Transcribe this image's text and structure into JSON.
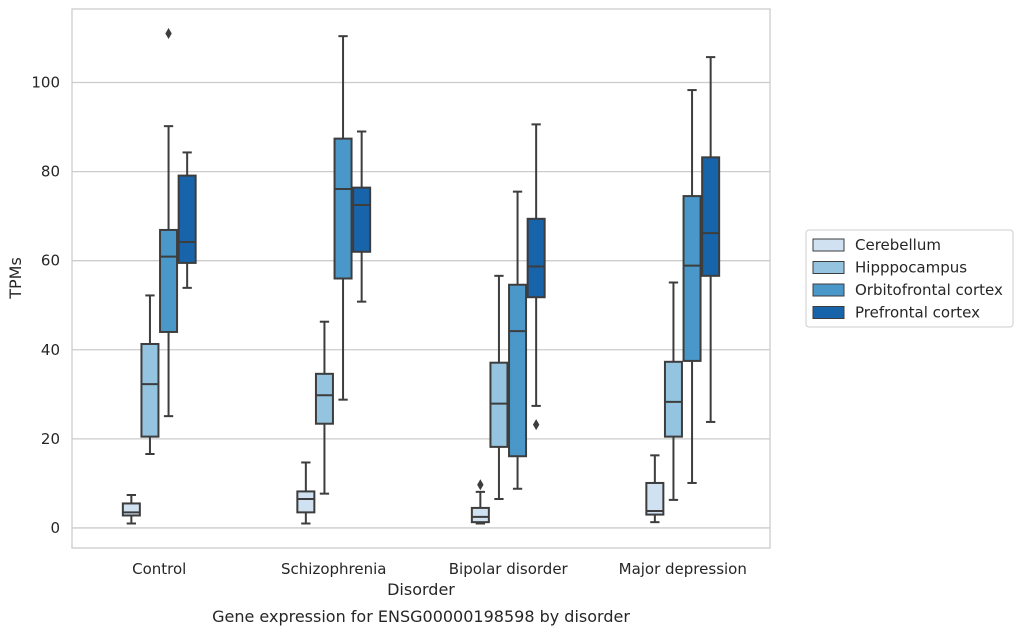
{
  "chart_data": {
    "type": "box",
    "xlabel": "Disorder",
    "ylabel": "TPMs",
    "caption": "Gene expression for ENSG00000198598 by disorder",
    "categories": [
      "Control",
      "Schizophrenia",
      "Bipolar disorder",
      "Major depression"
    ],
    "ylim": [
      -4.5,
      116.5
    ],
    "yticks": [
      0,
      20,
      40,
      60,
      80,
      100
    ],
    "grid": "horizontal",
    "legend_position": "right",
    "series": [
      {
        "name": "Cerebellum",
        "color": "#d0e1f2",
        "boxes": [
          {
            "min": 1,
            "q1": 2.8,
            "median": 3.5,
            "q3": 5.5,
            "max": 7.4,
            "outliers": []
          },
          {
            "min": 1,
            "q1": 3.5,
            "median": 6.5,
            "q3": 8.2,
            "max": 14.7,
            "outliers": []
          },
          {
            "min": 1,
            "q1": 1.3,
            "median": 2.5,
            "q3": 4.5,
            "max": 8.1,
            "outliers": [
              9.7
            ]
          },
          {
            "min": 1.3,
            "q1": 3,
            "median": 3.8,
            "q3": 10.1,
            "max": 16.3,
            "outliers": []
          }
        ]
      },
      {
        "name": "Hipppocampus",
        "color": "#94c4df",
        "boxes": [
          {
            "min": 16.6,
            "q1": 20.5,
            "median": 32.3,
            "q3": 41.3,
            "max": 52.2,
            "outliers": []
          },
          {
            "min": 7.7,
            "q1": 23.4,
            "median": 29.8,
            "q3": 34.6,
            "max": 46.3,
            "outliers": []
          },
          {
            "min": 6.5,
            "q1": 18.2,
            "median": 27.9,
            "q3": 37.1,
            "max": 56.6,
            "outliers": []
          },
          {
            "min": 6.3,
            "q1": 20.5,
            "median": 28.3,
            "q3": 37.3,
            "max": 55.1,
            "outliers": []
          }
        ]
      },
      {
        "name": "Orbitofrontal cortex",
        "color": "#4a98c9",
        "boxes": [
          {
            "min": 25.1,
            "q1": 44,
            "median": 60.9,
            "q3": 66.9,
            "max": 90.2,
            "outliers": [
              111
            ]
          },
          {
            "min": 28.8,
            "q1": 56,
            "median": 76.1,
            "q3": 87.4,
            "max": 110.4,
            "outliers": []
          },
          {
            "min": 8.8,
            "q1": 16.1,
            "median": 44.2,
            "q3": 54.6,
            "max": 75.5,
            "outliers": []
          },
          {
            "min": 10.1,
            "q1": 37.5,
            "median": 58.9,
            "q3": 74.5,
            "max": 98.3,
            "outliers": []
          }
        ]
      },
      {
        "name": "Prefrontal cortex",
        "color": "#1764ab",
        "boxes": [
          {
            "min": 53.9,
            "q1": 59.5,
            "median": 64.2,
            "q3": 79.1,
            "max": 84.3,
            "outliers": []
          },
          {
            "min": 50.8,
            "q1": 62,
            "median": 72.5,
            "q3": 76.4,
            "max": 89,
            "outliers": []
          },
          {
            "min": 27.4,
            "q1": 51.8,
            "median": 58.7,
            "q3": 69.4,
            "max": 90.6,
            "outliers": [
              23.2
            ]
          },
          {
            "min": 23.8,
            "q1": 56.6,
            "median": 66.2,
            "q3": 83.2,
            "max": 105.7,
            "outliers": []
          }
        ]
      }
    ]
  }
}
